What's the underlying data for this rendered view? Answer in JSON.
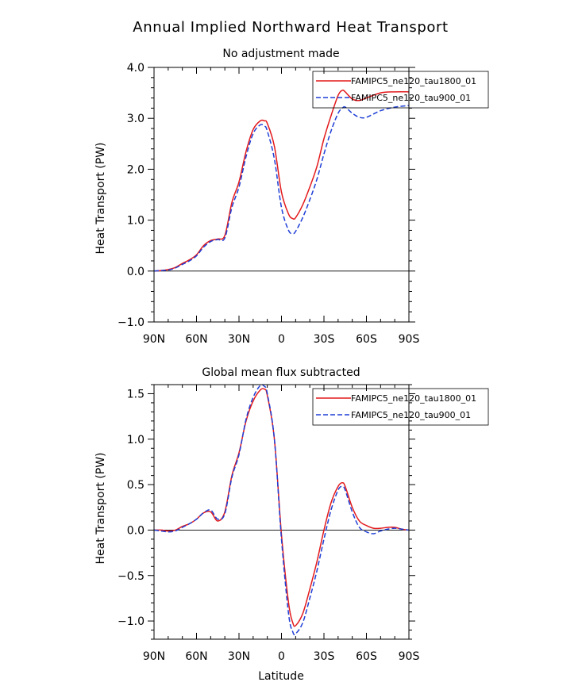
{
  "figure": {
    "title": "Annual Implied Northward Heat Transport"
  },
  "chart_data": [
    {
      "type": "line",
      "title": "No adjustment made",
      "xlabel": "",
      "ylabel": "Heat Transport (PW)",
      "xlim": [
        90,
        -90
      ],
      "ylim": [
        -1.0,
        4.0
      ],
      "xticks": [
        90,
        60,
        30,
        0,
        -30,
        -60,
        -90
      ],
      "xtick_labels": [
        "90N",
        "60N",
        "30N",
        "0",
        "30S",
        "60S",
        "90S"
      ],
      "yticks": [
        -1.0,
        0.0,
        1.0,
        2.0,
        3.0,
        4.0
      ],
      "ytick_labels": [
        "−1.0",
        "0.0",
        "1.0",
        "2.0",
        "3.0",
        "4.0"
      ],
      "zero_line": true,
      "grid": false,
      "legend_position": "top-right",
      "series": [
        {
          "name": "FAMIPC5_ne120_tau1800_01",
          "color": "#e31a1c",
          "dash": "solid",
          "x": [
            90,
            85,
            80,
            75,
            70,
            65,
            60,
            55,
            50,
            45,
            40,
            35,
            30,
            25,
            20,
            15,
            12,
            10,
            5,
            0,
            -5,
            -8,
            -10,
            -15,
            -20,
            -25,
            -30,
            -35,
            -40,
            -43,
            -45,
            -50,
            -55,
            -60,
            -70,
            -80,
            -90
          ],
          "y": [
            0.0,
            0.01,
            0.03,
            0.07,
            0.15,
            0.22,
            0.32,
            0.5,
            0.6,
            0.63,
            0.7,
            1.35,
            1.75,
            2.35,
            2.78,
            2.95,
            2.95,
            2.9,
            2.45,
            1.55,
            1.12,
            1.03,
            1.05,
            1.3,
            1.65,
            2.05,
            2.6,
            3.05,
            3.45,
            3.55,
            3.52,
            3.38,
            3.35,
            3.4,
            3.5,
            3.52,
            3.52
          ]
        },
        {
          "name": "FAMIPC5_ne120_tau900_01",
          "color": "#1f3fd6",
          "dash": "dashed",
          "x": [
            90,
            85,
            80,
            75,
            70,
            65,
            60,
            55,
            50,
            45,
            40,
            35,
            30,
            25,
            20,
            15,
            12,
            10,
            5,
            0,
            -5,
            -8,
            -10,
            -15,
            -20,
            -25,
            -30,
            -35,
            -40,
            -43,
            -45,
            -50,
            -55,
            -60,
            -70,
            -80,
            -90
          ],
          "y": [
            0.0,
            0.01,
            0.02,
            0.06,
            0.13,
            0.2,
            0.3,
            0.47,
            0.58,
            0.62,
            0.65,
            1.25,
            1.65,
            2.25,
            2.7,
            2.87,
            2.85,
            2.75,
            2.2,
            1.25,
            0.8,
            0.74,
            0.78,
            1.05,
            1.4,
            1.8,
            2.3,
            2.75,
            3.1,
            3.2,
            3.22,
            3.1,
            3.02,
            3.02,
            3.15,
            3.22,
            3.25
          ]
        }
      ]
    },
    {
      "type": "line",
      "title": "Global mean flux subtracted",
      "xlabel": "Latitude",
      "ylabel": "Heat Transport (PW)",
      "xlim": [
        90,
        -90
      ],
      "ylim": [
        -1.2,
        1.6
      ],
      "xticks": [
        90,
        60,
        30,
        0,
        -30,
        -60,
        -90
      ],
      "xtick_labels": [
        "90N",
        "60N",
        "30N",
        "0",
        "30S",
        "60S",
        "90S"
      ],
      "yticks": [
        -1.0,
        -0.5,
        0.0,
        0.5,
        1.0,
        1.5
      ],
      "ytick_labels": [
        "−1.0",
        "−0.5",
        "0.0",
        "0.5",
        "1.0",
        "1.5"
      ],
      "zero_line": true,
      "grid": false,
      "legend_position": "top-right",
      "series": [
        {
          "name": "FAMIPC5_ne120_tau1800_01",
          "color": "#e31a1c",
          "dash": "solid",
          "x": [
            90,
            85,
            80,
            75,
            70,
            65,
            60,
            55,
            50,
            45,
            40,
            35,
            30,
            25,
            20,
            15,
            12,
            10,
            5,
            0,
            -5,
            -8,
            -10,
            -15,
            -20,
            -25,
            -30,
            -35,
            -40,
            -43,
            -45,
            -50,
            -55,
            -60,
            -65,
            -70,
            -75,
            -80,
            -85,
            -90
          ],
          "y": [
            0.0,
            0.0,
            -0.01,
            0.0,
            0.04,
            0.07,
            0.12,
            0.19,
            0.2,
            0.1,
            0.2,
            0.6,
            0.85,
            1.2,
            1.42,
            1.54,
            1.55,
            1.48,
            1.0,
            -0.05,
            -0.8,
            -1.02,
            -1.05,
            -0.92,
            -0.65,
            -0.35,
            0.0,
            0.3,
            0.48,
            0.52,
            0.48,
            0.25,
            0.1,
            0.05,
            0.02,
            0.02,
            0.03,
            0.03,
            0.01,
            0.0
          ]
        },
        {
          "name": "FAMIPC5_ne120_tau900_01",
          "color": "#1f3fd6",
          "dash": "dashed",
          "x": [
            90,
            85,
            80,
            75,
            70,
            65,
            60,
            55,
            50,
            45,
            40,
            35,
            30,
            25,
            20,
            15,
            12,
            10,
            5,
            0,
            -5,
            -8,
            -10,
            -15,
            -20,
            -25,
            -30,
            -35,
            -40,
            -43,
            -45,
            -50,
            -55,
            -60,
            -65,
            -70,
            -75,
            -80,
            -85,
            -90
          ],
          "y": [
            0.0,
            -0.01,
            -0.02,
            -0.01,
            0.03,
            0.07,
            0.12,
            0.19,
            0.22,
            0.12,
            0.18,
            0.58,
            0.83,
            1.22,
            1.46,
            1.59,
            1.58,
            1.5,
            1.0,
            -0.1,
            -0.92,
            -1.12,
            -1.14,
            -1.02,
            -0.75,
            -0.45,
            -0.1,
            0.22,
            0.44,
            0.48,
            0.44,
            0.2,
            0.03,
            -0.02,
            -0.04,
            -0.01,
            0.01,
            0.02,
            0.01,
            0.0
          ]
        }
      ]
    }
  ]
}
